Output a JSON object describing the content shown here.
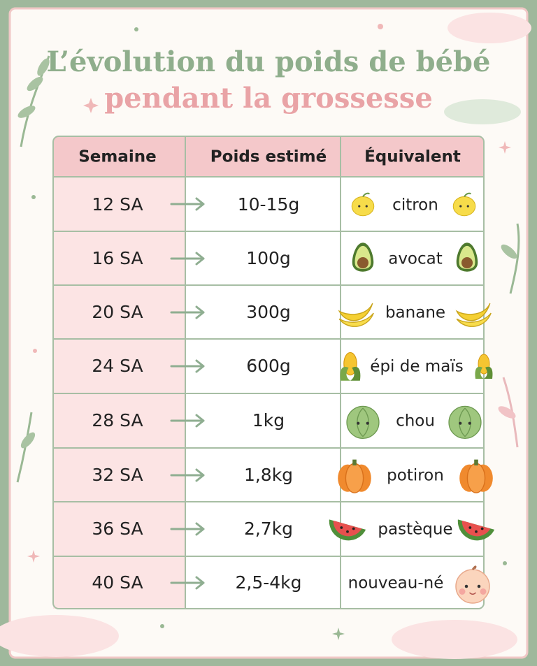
{
  "title": {
    "line1": "L’évolution du poids de bébé",
    "line2": "pendant la grossesse"
  },
  "table": {
    "header": [
      "Semaine",
      "Poids estimé",
      "Équivalent"
    ],
    "rows": [
      [
        "12 SA",
        "10-15g",
        "citron"
      ],
      [
        "16 SA",
        "100g",
        "avocat"
      ],
      [
        "20 SA",
        "300g",
        "banane"
      ],
      [
        "24 SA",
        "600g",
        "épi de maïs"
      ],
      [
        "28 SA",
        "1kg",
        "chou"
      ],
      [
        "32 SA",
        "1,8kg",
        "potiron"
      ],
      [
        "36 SA",
        "2,7kg",
        "pastèque"
      ],
      [
        "40 SA",
        "2,5-4kg",
        "nouveau-né"
      ]
    ]
  }
}
